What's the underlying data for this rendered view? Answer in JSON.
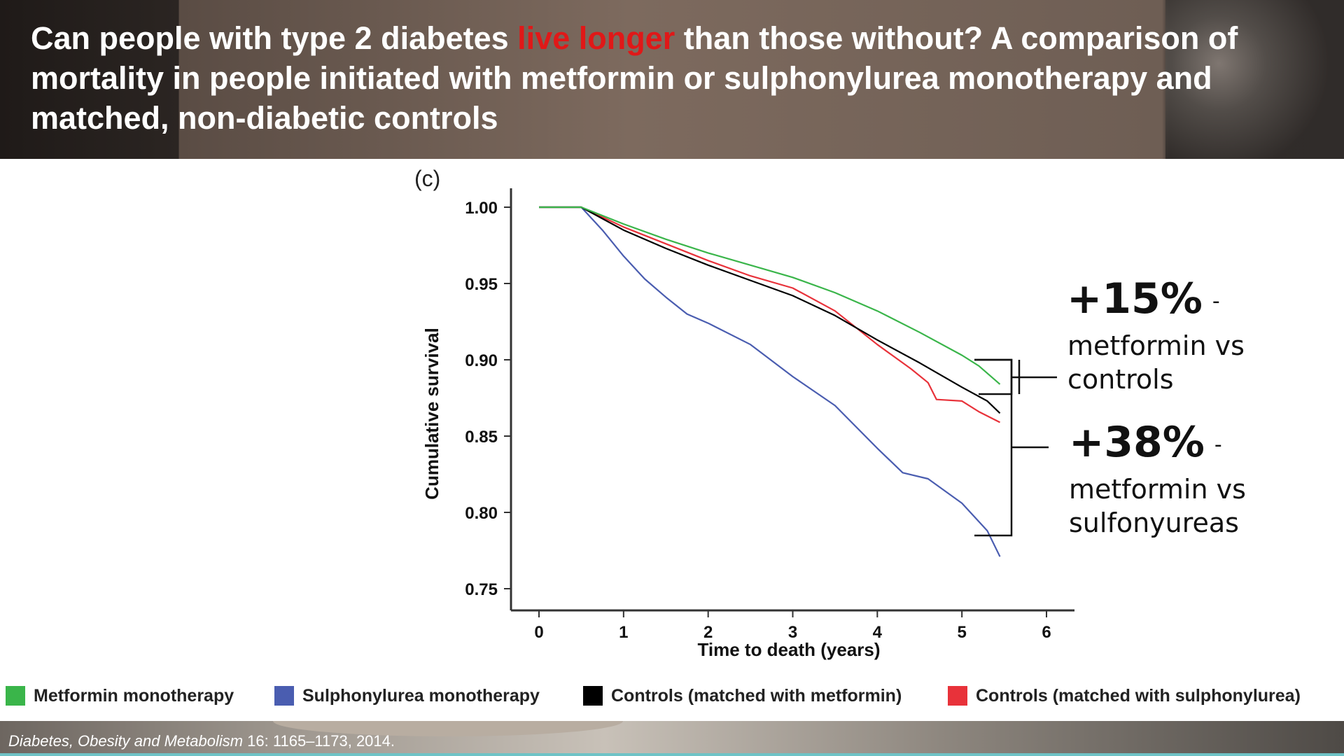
{
  "title": {
    "part1": "Can people with type 2 diabetes ",
    "highlight": "live longer",
    "part2": " than those without?   A comparison of mortality in people initiated with metformin or sulphonylurea monotherapy and matched, non-diabetic controls"
  },
  "colors": {
    "highlight": "#e01818",
    "metformin": "#3ab54a",
    "sulphonylurea": "#4a5db0",
    "controls_metformin": "#000000",
    "controls_sulphonylurea": "#e8323a"
  },
  "panel_label": "(c)",
  "annotations": {
    "a1_big": "+15%",
    "a1_dash": "-",
    "a1_line1": "metformin vs",
    "a1_line2": "controls",
    "a2_big": "+38%",
    "a2_dash": "-",
    "a2_line1": "metformin vs",
    "a2_line2": "sulfonyureas"
  },
  "legend": [
    {
      "label": "Metformin monotherapy",
      "color": "#3ab54a"
    },
    {
      "label": "Sulphonylurea monotherapy",
      "color": "#4a5db0"
    },
    {
      "label": "Controls (matched with metformin)",
      "color": "#000000"
    },
    {
      "label": "Controls (matched with sulphonylurea)",
      "color": "#e8323a"
    }
  ],
  "citation": {
    "journal": "Diabetes, Obesity and Metabolism",
    "ref": " 16: 1165–1173, 2014."
  },
  "chart_data": {
    "type": "line",
    "xlabel": "Time to death (years)",
    "ylabel": "Cumulative survival",
    "xlim": [
      0,
      6
    ],
    "ylim": [
      0.75,
      1.0
    ],
    "xticks": [
      "0",
      "1",
      "2",
      "3",
      "4",
      "5",
      "6"
    ],
    "yticks": [
      "0.75",
      "0.80",
      "0.85",
      "0.90",
      "0.95",
      "1.00"
    ],
    "series": [
      {
        "name": "Metformin monotherapy",
        "color": "#3ab54a",
        "x": [
          0,
          0.5,
          1.0,
          1.5,
          2.0,
          2.5,
          3.0,
          3.5,
          4.0,
          4.5,
          5.0,
          5.2,
          5.45
        ],
        "y": [
          1.0,
          1.0,
          0.989,
          0.979,
          0.97,
          0.962,
          0.954,
          0.944,
          0.932,
          0.918,
          0.903,
          0.896,
          0.884
        ]
      },
      {
        "name": "Sulphonylurea monotherapy",
        "color": "#4a5db0",
        "x": [
          0,
          0.5,
          0.75,
          1.0,
          1.25,
          1.5,
          1.75,
          2.0,
          2.5,
          3.0,
          3.5,
          4.0,
          4.3,
          4.6,
          5.0,
          5.3,
          5.45
        ],
        "y": [
          1.0,
          1.0,
          0.985,
          0.968,
          0.953,
          0.941,
          0.93,
          0.924,
          0.91,
          0.889,
          0.87,
          0.842,
          0.826,
          0.822,
          0.806,
          0.788,
          0.771
        ]
      },
      {
        "name": "Controls (matched with metformin)",
        "color": "#000000",
        "x": [
          0,
          0.5,
          1.0,
          1.5,
          2.0,
          2.5,
          3.0,
          3.5,
          4.0,
          4.5,
          5.0,
          5.3,
          5.45
        ],
        "y": [
          1.0,
          1.0,
          0.985,
          0.973,
          0.962,
          0.952,
          0.942,
          0.929,
          0.913,
          0.898,
          0.882,
          0.873,
          0.865
        ]
      },
      {
        "name": "Controls (matched with sulphonylurea)",
        "color": "#e8323a",
        "x": [
          0,
          0.5,
          1.0,
          1.5,
          2.0,
          2.5,
          3.0,
          3.5,
          4.0,
          4.4,
          4.6,
          4.7,
          5.0,
          5.2,
          5.45
        ],
        "y": [
          1.0,
          1.0,
          0.987,
          0.976,
          0.965,
          0.955,
          0.947,
          0.932,
          0.91,
          0.894,
          0.885,
          0.874,
          0.873,
          0.866,
          0.859
        ]
      }
    ]
  }
}
